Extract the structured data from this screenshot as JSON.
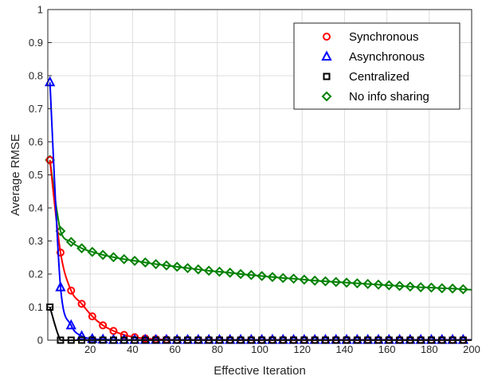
{
  "chart_data": {
    "type": "line",
    "title": "",
    "xlabel": "Effective Iteration",
    "ylabel": "Average RMSE",
    "xlim": [
      0,
      200
    ],
    "ylim": [
      0,
      1
    ],
    "xticks": [
      20,
      40,
      60,
      80,
      100,
      120,
      140,
      160,
      180,
      200
    ],
    "yticks": [
      0,
      0.1,
      0.2,
      0.3,
      0.4,
      0.5,
      0.6,
      0.7,
      0.8,
      0.9,
      1
    ],
    "xtick_labels": [
      "20",
      "40",
      "60",
      "80",
      "100",
      "120",
      "140",
      "160",
      "180",
      "200"
    ],
    "ytick_labels": [
      "0",
      "0.1",
      "0.2",
      "0.3",
      "0.4",
      "0.5",
      "0.6",
      "0.7",
      "0.8",
      "0.9",
      "1"
    ],
    "grid": true,
    "legend_position": "top-right",
    "series": [
      {
        "name": "Synchronous",
        "color": "#ff0000",
        "marker": "circle",
        "x": [
          1,
          6,
          11,
          16,
          21,
          26,
          31,
          36,
          41,
          46,
          51,
          56,
          61,
          66,
          71,
          76,
          81,
          86,
          91,
          96,
          101,
          106,
          111,
          116,
          121,
          126,
          131,
          136,
          141,
          146,
          151,
          156,
          161,
          166,
          171,
          176,
          181,
          186,
          191,
          196
        ],
        "values": [
          0.545,
          0.265,
          0.15,
          0.11,
          0.072,
          0.045,
          0.028,
          0.016,
          0.009,
          0.005,
          0.003,
          0.002,
          0.001,
          0.001,
          0.001,
          0.001,
          0.001,
          0.001,
          0.001,
          0.001,
          0.001,
          0.001,
          0.001,
          0.001,
          0.001,
          0.001,
          0.001,
          0.001,
          0.001,
          0.001,
          0.001,
          0.001,
          0.001,
          0.001,
          0.001,
          0.001,
          0.001,
          0.001,
          0.001,
          0.001
        ]
      },
      {
        "name": "Asynchronous",
        "color": "#0000ff",
        "marker": "triangle",
        "x": [
          1,
          6,
          11,
          16,
          21,
          26,
          31,
          36,
          41,
          46,
          51,
          56,
          61,
          66,
          71,
          76,
          81,
          86,
          91,
          96,
          101,
          106,
          111,
          116,
          121,
          126,
          131,
          136,
          141,
          146,
          151,
          156,
          161,
          166,
          171,
          176,
          181,
          186,
          191,
          196
        ],
        "values": [
          0.78,
          0.16,
          0.045,
          0.012,
          0.004,
          0.002,
          0.001,
          0.001,
          0.001,
          0.001,
          0.001,
          0.001,
          0.001,
          0.001,
          0.001,
          0.001,
          0.001,
          0.001,
          0.001,
          0.001,
          0.001,
          0.001,
          0.001,
          0.001,
          0.001,
          0.001,
          0.001,
          0.001,
          0.001,
          0.001,
          0.001,
          0.001,
          0.001,
          0.001,
          0.001,
          0.001,
          0.001,
          0.001,
          0.001,
          0.001
        ]
      },
      {
        "name": "Centralized",
        "color": "#000000",
        "marker": "square",
        "x": [
          1,
          6,
          11,
          16,
          21,
          26,
          31,
          36,
          41,
          46,
          51,
          56,
          61,
          66,
          71,
          76,
          81,
          86,
          91,
          96,
          101,
          106,
          111,
          116,
          121,
          126,
          131,
          136,
          141,
          146,
          151,
          156,
          161,
          166,
          171,
          176,
          181,
          186,
          191,
          196
        ],
        "values": [
          0.1,
          0.0,
          0.0,
          0.0,
          0.0,
          0.0,
          0.0,
          0.0,
          0.0,
          0.0,
          0.0,
          0.0,
          0.0,
          0.0,
          0.0,
          0.0,
          0.0,
          0.0,
          0.0,
          0.0,
          0.0,
          0.0,
          0.0,
          0.0,
          0.0,
          0.0,
          0.0,
          0.0,
          0.0,
          0.0,
          0.0,
          0.0,
          0.0,
          0.0,
          0.0,
          0.0,
          0.0,
          0.0,
          0.0,
          0.0
        ]
      },
      {
        "name": "No info sharing",
        "color": "#008000",
        "marker": "diamond",
        "x": [
          1,
          6,
          11,
          16,
          21,
          26,
          31,
          36,
          41,
          46,
          51,
          56,
          61,
          66,
          71,
          76,
          81,
          86,
          91,
          96,
          101,
          106,
          111,
          116,
          121,
          126,
          131,
          136,
          141,
          146,
          151,
          156,
          161,
          166,
          171,
          176,
          181,
          186,
          191,
          196
        ],
        "values": [
          0.545,
          0.33,
          0.297,
          0.278,
          0.267,
          0.258,
          0.251,
          0.245,
          0.24,
          0.235,
          0.23,
          0.226,
          0.222,
          0.218,
          0.214,
          0.21,
          0.207,
          0.204,
          0.2,
          0.197,
          0.194,
          0.191,
          0.188,
          0.186,
          0.183,
          0.18,
          0.178,
          0.176,
          0.174,
          0.172,
          0.17,
          0.168,
          0.166,
          0.164,
          0.162,
          0.16,
          0.159,
          0.157,
          0.156,
          0.154
        ]
      }
    ]
  }
}
